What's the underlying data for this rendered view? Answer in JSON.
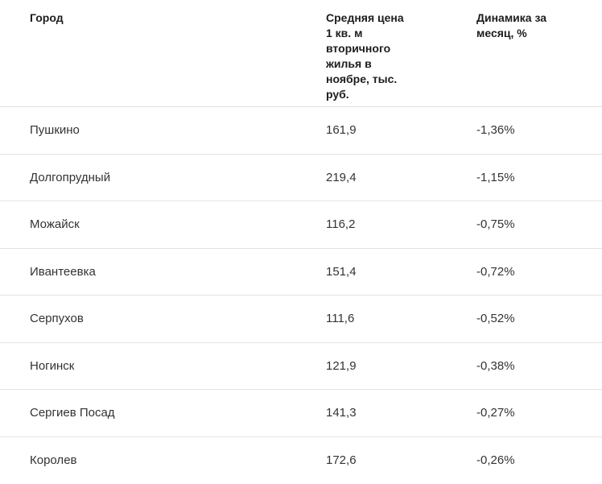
{
  "colors": {
    "background": "#ffffff",
    "header_text": "#1d1d1d",
    "body_text": "#333333",
    "divider": "#e0e0e0"
  },
  "chart_data": {
    "type": "table",
    "title": "",
    "columns": [
      "Город",
      "Средняя цена 1 кв. м вторичного жилья в ноябре, тыс. руб.",
      "Динамика за месяц, %"
    ],
    "column_display": [
      "Город",
      "Средняя цена\n1 кв. м\nвторичного\nжилья в\nноябре, тыс.\nруб.",
      "Динамика за\nмесяц, %"
    ],
    "rows": [
      [
        "Пушкино",
        "161,9",
        "-1,36%"
      ],
      [
        "Долгопрудный",
        "219,4",
        "-1,15%"
      ],
      [
        "Можайск",
        "116,2",
        "-0,75%"
      ],
      [
        "Ивантеевка",
        "151,4",
        "-0,72%"
      ],
      [
        "Серпухов",
        "111,6",
        "-0,52%"
      ],
      [
        "Ногинск",
        "121,9",
        "-0,38%"
      ],
      [
        "Сергиев Посад",
        "141,3",
        "-0,27%"
      ],
      [
        "Королев",
        "172,6",
        "-0,26%"
      ]
    ],
    "values": {
      "cities": [
        "Пушкино",
        "Долгопрудный",
        "Можайск",
        "Ивантеевка",
        "Серпухов",
        "Ногинск",
        "Сергиев Посад",
        "Королев"
      ],
      "avg_price_sqm_november_thousand_rub": [
        161.9,
        219.4,
        116.2,
        151.4,
        111.6,
        121.9,
        141.3,
        172.6
      ],
      "month_change_percent": [
        -1.36,
        -1.15,
        -0.75,
        -0.72,
        -0.52,
        -0.38,
        -0.27,
        -0.26
      ]
    }
  }
}
